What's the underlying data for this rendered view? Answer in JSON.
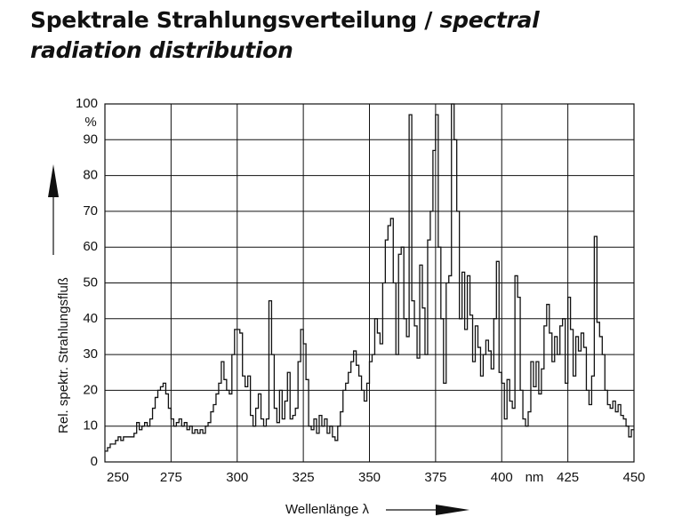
{
  "chart_data": {
    "type": "step",
    "title": "Spektrale Strahlungsverteilung /",
    "title_en": "spectral radiation distribution",
    "y_label": "Rel. spektr. Strahlungsfluß",
    "y_unit": "%",
    "x_label": "Wellenlänge λ",
    "x_unit": "nm",
    "xlim": [
      250,
      450
    ],
    "xticks": [
      250,
      275,
      300,
      325,
      350,
      375,
      400,
      425,
      450
    ],
    "ylim": [
      0,
      100
    ],
    "yticks": [
      0,
      10,
      20,
      30,
      40,
      50,
      60,
      70,
      80,
      90,
      100
    ],
    "grid": true,
    "color": "#111111",
    "x": [
      250,
      251,
      252,
      253,
      254,
      255,
      256,
      257,
      258,
      259,
      260,
      261,
      262,
      263,
      264,
      265,
      266,
      267,
      268,
      269,
      270,
      271,
      272,
      273,
      274,
      275,
      276,
      277,
      278,
      279,
      280,
      281,
      282,
      283,
      284,
      285,
      286,
      287,
      288,
      289,
      290,
      291,
      292,
      293,
      294,
      295,
      296,
      297,
      298,
      299,
      300,
      301,
      302,
      303,
      304,
      305,
      306,
      307,
      308,
      309,
      310,
      311,
      312,
      313,
      314,
      315,
      316,
      317,
      318,
      319,
      320,
      321,
      322,
      323,
      324,
      325,
      326,
      327,
      328,
      329,
      330,
      331,
      332,
      333,
      334,
      335,
      336,
      337,
      338,
      339,
      340,
      341,
      342,
      343,
      344,
      345,
      346,
      347,
      348,
      349,
      350,
      351,
      352,
      353,
      354,
      355,
      356,
      357,
      358,
      359,
      360,
      361,
      362,
      363,
      364,
      365,
      366,
      367,
      368,
      369,
      370,
      371,
      372,
      373,
      374,
      375,
      376,
      377,
      378,
      379,
      380,
      381,
      382,
      383,
      384,
      385,
      386,
      387,
      388,
      389,
      390,
      391,
      392,
      393,
      394,
      395,
      396,
      397,
      398,
      399,
      400,
      401,
      402,
      403,
      404,
      405,
      406,
      407,
      408,
      409,
      410,
      411,
      412,
      413,
      414,
      415,
      416,
      417,
      418,
      419,
      420,
      421,
      422,
      423,
      424,
      425,
      426,
      427,
      428,
      429,
      430,
      431,
      432,
      433,
      434,
      435,
      436,
      437,
      438,
      439,
      440,
      441,
      442,
      443,
      444,
      445,
      446,
      447,
      448,
      449
    ],
    "values": [
      3,
      4,
      5,
      5,
      6,
      7,
      6,
      7,
      7,
      7,
      7,
      8,
      11,
      9,
      10,
      11,
      10,
      12,
      15,
      18,
      20,
      21,
      22,
      19,
      15,
      12,
      10,
      11,
      12,
      10,
      11,
      9,
      10,
      8,
      9,
      8,
      9,
      8,
      10,
      11,
      14,
      16,
      19,
      22,
      28,
      23,
      20,
      19,
      30,
      37,
      37,
      36,
      24,
      21,
      24,
      13,
      10,
      15,
      19,
      12,
      10,
      12,
      45,
      30,
      15,
      11,
      20,
      12,
      17,
      25,
      12,
      13,
      15,
      28,
      37,
      33,
      23,
      10,
      9,
      12,
      8,
      13,
      10,
      12,
      8,
      10,
      7,
      6,
      10,
      14,
      20,
      22,
      25,
      28,
      31,
      27,
      24,
      20,
      17,
      22,
      28,
      30,
      40,
      36,
      33,
      50,
      62,
      66,
      68,
      50,
      30,
      58,
      60,
      40,
      35,
      97,
      45,
      38,
      29,
      55,
      43,
      30,
      62,
      70,
      87,
      97,
      60,
      40,
      22,
      50,
      52,
      100,
      90,
      70,
      40,
      53,
      37,
      52,
      41,
      28,
      38,
      32,
      24,
      30,
      34,
      31,
      26,
      40,
      56,
      25,
      22,
      12,
      23,
      17,
      15,
      52,
      46,
      20,
      12,
      10,
      14,
      28,
      21,
      28,
      19,
      26,
      38,
      44,
      36,
      28,
      35,
      30,
      38,
      40,
      22,
      46,
      37,
      24,
      35,
      31,
      36,
      32,
      20,
      16,
      24,
      63,
      39,
      35,
      30,
      20,
      16,
      15,
      17,
      14,
      16,
      13,
      12,
      10,
      7,
      9
    ]
  }
}
